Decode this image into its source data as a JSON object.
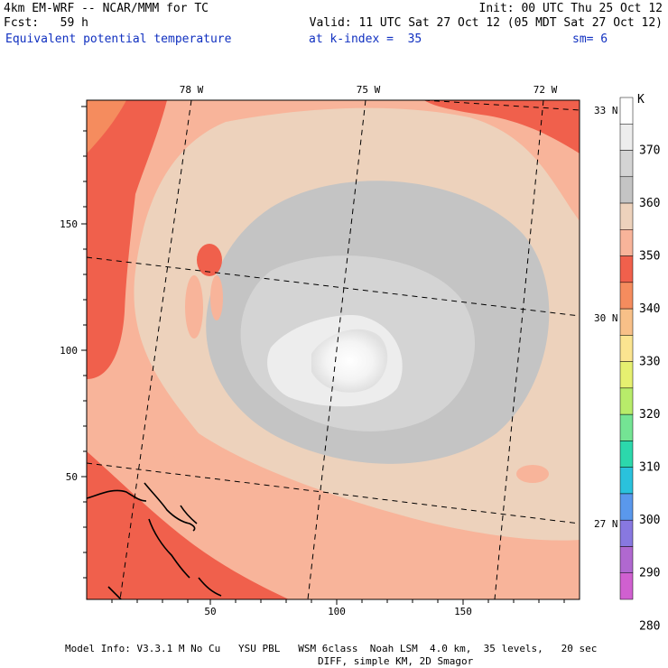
{
  "header": {
    "model_title": "4km EM-WRF -- NCAR/MMM for TC",
    "init": "Init: 00 UTC Thu 25 Oct 12",
    "forecast": "Fcst:   59 h",
    "valid": "Valid: 11 UTC Sat 27 Oct 12 (05 MDT Sat 27 Oct 12)",
    "field_name": "Equivalent potential temperature",
    "level": "at k-index =  35",
    "smoothing": "sm= 6"
  },
  "map": {
    "x_ticks": [
      "50",
      "100",
      "150"
    ],
    "y_ticks": [
      "50",
      "100",
      "150"
    ],
    "lon_labels": [
      "78 W",
      "75 W",
      "72 W"
    ],
    "lat_labels": [
      "33 N",
      "30 N",
      "27 N"
    ]
  },
  "colorbar": {
    "unit": "K",
    "labels": [
      "370",
      "360",
      "350",
      "340",
      "330",
      "320",
      "310",
      "300",
      "290",
      "280"
    ],
    "colors": [
      "#ffffff",
      "#ededed",
      "#d4d4d4",
      "#c4c4c4",
      "#edd2bc",
      "#f8b49a",
      "#f0604c",
      "#f58c5e",
      "#f8c088",
      "#fbe490",
      "#e6f070",
      "#b8ec6a",
      "#74e494",
      "#2cd8ac",
      "#2ac2dc",
      "#5a98ec",
      "#8878e0",
      "#b068d0",
      "#d060d0"
    ]
  },
  "footer": {
    "line1": "Model Info: V3.3.1 M No Cu   YSU PBL   WSM 6class  Noah LSM  4.0 km,  35 levels,   20 sec",
    "line2": "DIFF, simple KM, 2D Smagor"
  }
}
